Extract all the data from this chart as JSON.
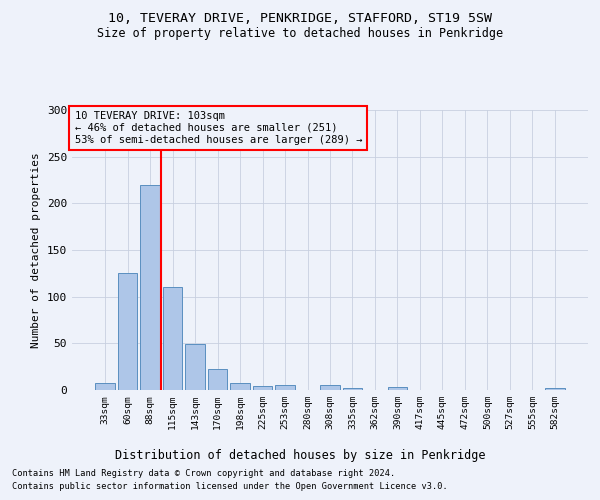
{
  "title1": "10, TEVERAY DRIVE, PENKRIDGE, STAFFORD, ST19 5SW",
  "title2": "Size of property relative to detached houses in Penkridge",
  "xlabel": "Distribution of detached houses by size in Penkridge",
  "ylabel": "Number of detached properties",
  "categories": [
    "33sqm",
    "60sqm",
    "88sqm",
    "115sqm",
    "143sqm",
    "170sqm",
    "198sqm",
    "225sqm",
    "253sqm",
    "280sqm",
    "308sqm",
    "335sqm",
    "362sqm",
    "390sqm",
    "417sqm",
    "445sqm",
    "472sqm",
    "500sqm",
    "527sqm",
    "555sqm",
    "582sqm"
  ],
  "values": [
    8,
    125,
    220,
    110,
    49,
    22,
    8,
    4,
    5,
    0,
    5,
    2,
    0,
    3,
    0,
    0,
    0,
    0,
    0,
    0,
    2
  ],
  "bar_color": "#aec6e8",
  "bar_edgecolor": "#5a8fc0",
  "vline_x": 2.5,
  "vline_color": "red",
  "annotation_lines": [
    "10 TEVERAY DRIVE: 103sqm",
    "← 46% of detached houses are smaller (251)",
    "53% of semi-detached houses are larger (289) →"
  ],
  "ylim": [
    0,
    300
  ],
  "yticks": [
    0,
    50,
    100,
    150,
    200,
    250,
    300
  ],
  "footnote1": "Contains HM Land Registry data © Crown copyright and database right 2024.",
  "footnote2": "Contains public sector information licensed under the Open Government Licence v3.0.",
  "bg_color": "#eef2fa",
  "grid_color": "#c8d0e0"
}
